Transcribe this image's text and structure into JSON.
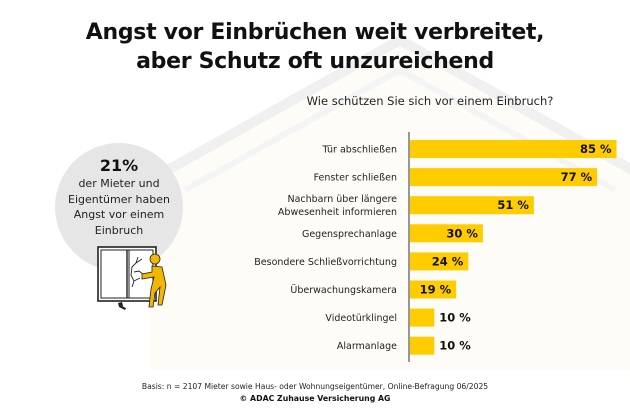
{
  "header": {
    "title_line1": "Angst vor Einbrüchen weit verbreitet,",
    "title_line2": "aber Schutz oft unzureichend"
  },
  "callout": {
    "percent": "21%",
    "line1": "der Mieter und",
    "line2": "Eigentümer haben",
    "line3": "Angst vor einem",
    "line4": "Einbruch",
    "illustration": "burglar-breaking-window-icon"
  },
  "colors": {
    "bar": "#FFCC00",
    "circle": "#E6E6E6",
    "axis": "#555555",
    "figure": "#F2B705"
  },
  "chart_data": {
    "type": "bar",
    "orientation": "horizontal",
    "title": "Wie schützen Sie sich vor einem Einbruch?",
    "categories": [
      "Tür abschließen",
      "Fenster schließen",
      "Nachbarn über längere Abwesenheit informieren",
      "Gegensprechanlage",
      "Besondere Schließvorrichtung",
      "Überwachungskamera",
      "Videotürklingel",
      "Alarmanlage"
    ],
    "category_lines": [
      [
        "Tür abschließen"
      ],
      [
        "Fenster schließen"
      ],
      [
        "Nachbarn über längere",
        "Abwesenheit informieren"
      ],
      [
        "Gegensprechanlage"
      ],
      [
        "Besondere Schließvorrichtung"
      ],
      [
        "Überwachungskamera"
      ],
      [
        "Videotürklingel"
      ],
      [
        "Alarmanlage"
      ]
    ],
    "values": [
      85,
      77,
      51,
      30,
      24,
      19,
      10,
      10
    ],
    "value_labels": [
      "85 %",
      "77 %",
      "51 %",
      "30 %",
      "24 %",
      "19 %",
      "10 %",
      "10 %"
    ],
    "unit": "%",
    "xlim": [
      0,
      100
    ],
    "grid": false,
    "legend": "none",
    "xlabel": "",
    "ylabel": ""
  },
  "footer": {
    "basis": "Basis: n = 2107 Mieter sowie Haus- oder Wohnungseigentümer, Online-Befragung 06/2025",
    "copyright": "© ADAC Zuhause Versicherung AG"
  }
}
